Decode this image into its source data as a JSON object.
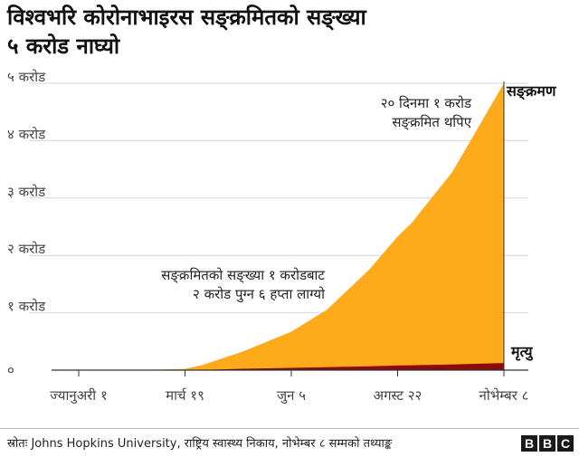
{
  "title_line1": "विश्वभरि कोरोनाभाइरस सङ्क्रमितको सङ्ख्या",
  "title_line2": "५ करोड नाघ्यो",
  "chart_data": {
    "type": "area",
    "title": "विश्वभरि कोरोनाभाइरस सङ्क्रमितको सङ्ख्या ५ करोड नाघ्यो",
    "x_dates": [
      "2020-01-01",
      "2020-02-01",
      "2020-03-01",
      "2020-03-19",
      "2020-04-01",
      "2020-05-01",
      "2020-06-05",
      "2020-07-01",
      "2020-08-01",
      "2020-08-22",
      "2020-09-01",
      "2020-10-01",
      "2020-11-08"
    ],
    "xlim": [
      "2020-01-01",
      "2020-11-08"
    ],
    "x_ticks": [
      {
        "date": "2020-01-01",
        "label": "ज्यानुअरी १"
      },
      {
        "date": "2020-03-19",
        "label": "मार्च १९"
      },
      {
        "date": "2020-06-05",
        "label": "जुन ५"
      },
      {
        "date": "2020-08-22",
        "label": "अगस्ट २२"
      },
      {
        "date": "2020-11-08",
        "label": "नोभेम्बर ८"
      }
    ],
    "y_ticks": [
      {
        "value": 0,
        "label": "०"
      },
      {
        "value": 1,
        "label": "१ करोड"
      },
      {
        "value": 2,
        "label": "२ करोड"
      },
      {
        "value": 3,
        "label": "३ करोड"
      },
      {
        "value": 4,
        "label": "४ करोड"
      },
      {
        "value": 5,
        "label": "५ करोड"
      }
    ],
    "ylim": [
      0,
      5
    ],
    "grid": true,
    "series": [
      {
        "name": "सङ्क्रमण",
        "color": "#fdaa1b",
        "values": [
          0.0,
          0.001,
          0.009,
          0.022,
          0.09,
          0.33,
          0.67,
          1.05,
          1.75,
          2.33,
          2.56,
          3.45,
          5.0
        ]
      },
      {
        "name": "मृत्यु",
        "color": "#8b0b0b",
        "values": [
          0.0,
          0.0,
          0.0,
          0.001,
          0.004,
          0.023,
          0.039,
          0.051,
          0.068,
          0.081,
          0.085,
          0.1,
          0.125
        ]
      }
    ],
    "annotations": [
      {
        "id": "a1",
        "lines": [
          "२० दिनमा १ करोड",
          "सङ्क्रमित थपिए"
        ]
      },
      {
        "id": "a2",
        "lines": [
          "सङ्क्रमितको सङ्ख्या १ करोडबाट",
          "२ करोड पुग्न ६ हप्ता लाग्यो"
        ]
      }
    ]
  },
  "footer": {
    "source": "स्रोतः Johns Hopkins University, राष्ट्रिय स्वास्थ्य निकाय, नोभेम्बर ८ सम्मको तथ्याङ्क",
    "logo_letters": [
      "B",
      "B",
      "C"
    ]
  }
}
